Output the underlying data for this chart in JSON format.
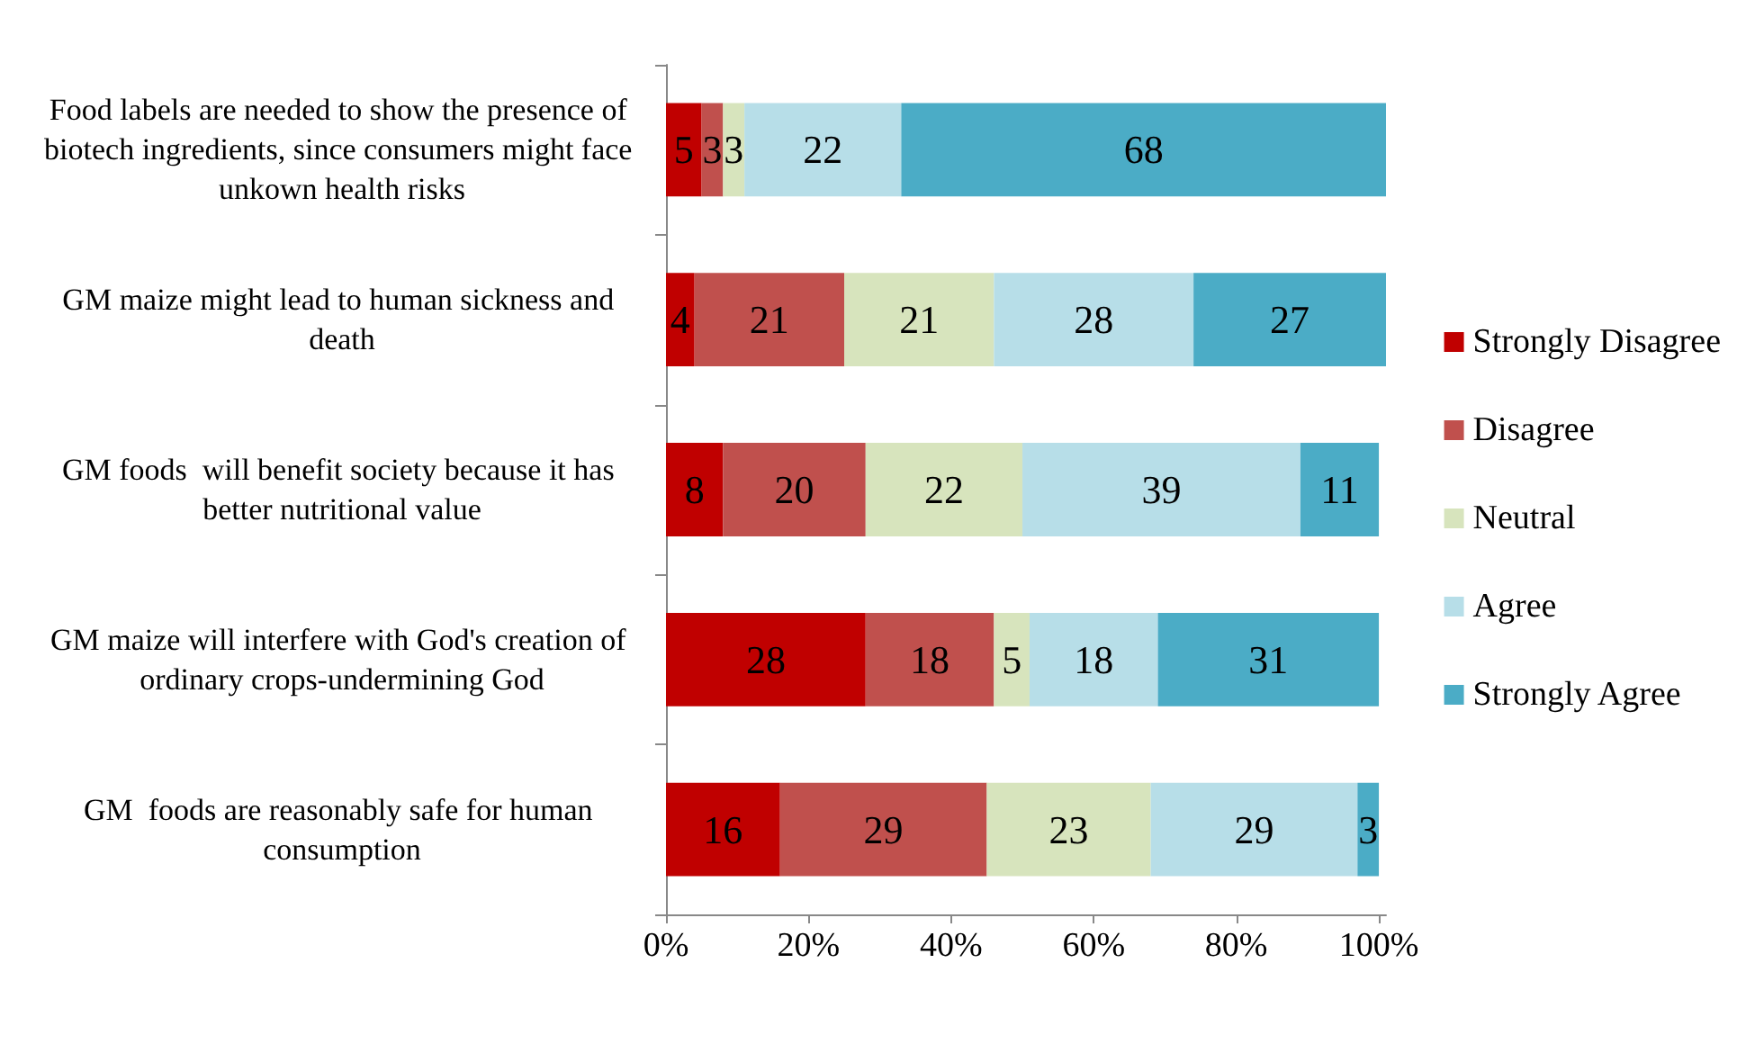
{
  "chart_data": {
    "type": "bar",
    "orientation": "horizontal",
    "stacked": true,
    "data_labels": true,
    "legend": "right",
    "categories": [
      "Food labels are needed to show the presence of biotech ingredients, since consumers might face unkown health risks",
      "GM maize might lead to human sickness and death",
      "GM foods  will benefit society because it has better nutritional value",
      "GM maize will interfere with God's creation of ordinary crops-undermining God",
      "GM  foods are reasonably safe for human consumption"
    ],
    "series": [
      {
        "name": "Strongly Disagree",
        "color": "#c00000",
        "values": [
          5,
          4,
          8,
          28,
          16
        ]
      },
      {
        "name": "Disagree",
        "color": "#c0504d",
        "values": [
          3,
          21,
          20,
          18,
          29
        ]
      },
      {
        "name": "Neutral",
        "color": "#d7e4bd",
        "values": [
          3,
          21,
          22,
          5,
          23
        ]
      },
      {
        "name": "Agree",
        "color": "#b7dee8",
        "values": [
          22,
          28,
          39,
          18,
          29
        ]
      },
      {
        "name": "Strongly Agree",
        "color": "#4bacc6",
        "values": [
          68,
          27,
          11,
          31,
          3
        ]
      }
    ],
    "xlim": [
      0,
      101
    ],
    "xticks": [
      {
        "value": 0,
        "label": "0%"
      },
      {
        "value": 20,
        "label": "20%"
      },
      {
        "value": 40,
        "label": "40%"
      },
      {
        "value": 60,
        "label": "60%"
      },
      {
        "value": 80,
        "label": "80%"
      },
      {
        "value": 100,
        "label": "100%"
      }
    ]
  }
}
